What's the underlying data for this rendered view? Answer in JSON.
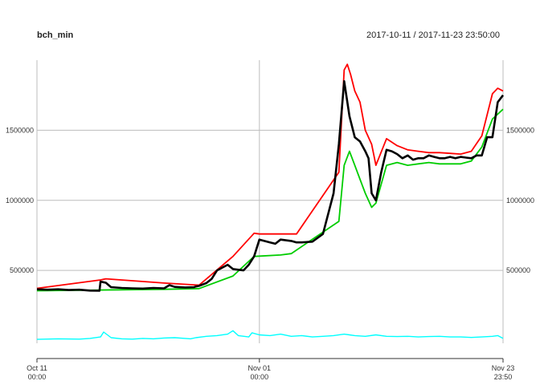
{
  "chart_data": {
    "type": "line",
    "title": "bch_min",
    "date_range": "2017-10-11 / 2017-11-23 23:50:00",
    "x_ticks": [
      {
        "date_line": "Oct 11",
        "time_line": "00:00"
      },
      {
        "date_line": "Nov 01",
        "time_line": "00:00"
      },
      {
        "date_line": "Nov 23",
        "time_line": "23:50"
      }
    ],
    "y_ticks": [
      "500000",
      "1000000",
      "1500000"
    ],
    "ylim": [
      -20000,
      2000000
    ],
    "grid": true,
    "series": [
      {
        "role": "close",
        "color": "#000000",
        "x": [
          0,
          1,
          2,
          3,
          4,
          5,
          5.9,
          6,
          6.5,
          7,
          8,
          9,
          10,
          11,
          12,
          12.5,
          13,
          14,
          14.8,
          15,
          15.3,
          16,
          16.5,
          17,
          18,
          18.5,
          19,
          19.5,
          20,
          20.5,
          21,
          22,
          22.5,
          23,
          24,
          24.5,
          25,
          26,
          27,
          28,
          28.5,
          29,
          29.5,
          30,
          30.5,
          31,
          31.3,
          31.6,
          32,
          32.5,
          33,
          33.5,
          34,
          34.5,
          35,
          35.5,
          36,
          36.5,
          37,
          37.5,
          38,
          38.5,
          39,
          39.5,
          40,
          40.5,
          41,
          41.5,
          42,
          42.5,
          43,
          43.5,
          44
        ],
        "y": [
          365000,
          362000,
          365000,
          360000,
          362000,
          356000,
          355000,
          420000,
          412000,
          380000,
          375000,
          372000,
          370000,
          375000,
          372000,
          395000,
          382000,
          378000,
          380000,
          385000,
          390000,
          410000,
          440000,
          500000,
          540000,
          510000,
          505000,
          500000,
          540000,
          600000,
          720000,
          700000,
          690000,
          720000,
          710000,
          700000,
          700000,
          705000,
          760000,
          1050000,
          1400000,
          1850000,
          1600000,
          1450000,
          1420000,
          1350000,
          1300000,
          1050000,
          1000000,
          1200000,
          1360000,
          1350000,
          1330000,
          1300000,
          1320000,
          1290000,
          1300000,
          1300000,
          1320000,
          1310000,
          1300000,
          1300000,
          1310000,
          1300000,
          1310000,
          1305000,
          1300000,
          1320000,
          1320000,
          1450000,
          1450000,
          1700000,
          1750000
        ]
      },
      {
        "role": "high",
        "color": "#ff0000",
        "x": [
          0,
          6,
          6.5,
          12,
          15.3,
          18.5,
          20.5,
          21,
          24.5,
          28.5,
          29,
          29.3,
          29.6,
          30,
          30.5,
          31,
          31.6,
          32,
          33,
          34,
          35,
          36,
          37,
          38,
          39,
          40,
          41,
          42,
          43,
          43.5,
          44
        ],
        "y": [
          372000,
          432000,
          440000,
          410000,
          395000,
          600000,
          765000,
          760000,
          760000,
          1200000,
          1930000,
          1970000,
          1900000,
          1780000,
          1700000,
          1500000,
          1400000,
          1250000,
          1440000,
          1390000,
          1360000,
          1350000,
          1340000,
          1340000,
          1335000,
          1330000,
          1350000,
          1460000,
          1760000,
          1800000,
          1780000
        ]
      },
      {
        "role": "low",
        "color": "#00cd00",
        "x": [
          0,
          6,
          12,
          15.3,
          18.5,
          20.5,
          23,
          24,
          28.5,
          29,
          29.5,
          30,
          30.5,
          31,
          31.6,
          32,
          33,
          34,
          35,
          36,
          37,
          38,
          39,
          40,
          41,
          42,
          43,
          44
        ],
        "y": [
          355000,
          360000,
          365000,
          370000,
          460000,
          600000,
          610000,
          620000,
          850000,
          1250000,
          1350000,
          1250000,
          1150000,
          1050000,
          950000,
          980000,
          1250000,
          1270000,
          1250000,
          1260000,
          1270000,
          1260000,
          1260000,
          1260000,
          1280000,
          1380000,
          1580000,
          1650000
        ]
      },
      {
        "role": "volume",
        "color": "#00ffff",
        "x": [
          0,
          2,
          4,
          5,
          6,
          6.3,
          7,
          8,
          9,
          10,
          11,
          12,
          13,
          14,
          14.5,
          15,
          16,
          17,
          18,
          18.5,
          19,
          20,
          20.3,
          21,
          22,
          23,
          24,
          25,
          26,
          27,
          28,
          29,
          29.5,
          30,
          31,
          32,
          33,
          34,
          35,
          36,
          37,
          38,
          39,
          40,
          41,
          42,
          43,
          43.5,
          44
        ],
        "y": [
          8000,
          12000,
          10000,
          15000,
          25000,
          60000,
          20000,
          12000,
          10000,
          15000,
          12000,
          18000,
          20000,
          15000,
          12000,
          20000,
          30000,
          35000,
          45000,
          70000,
          35000,
          25000,
          55000,
          40000,
          35000,
          45000,
          30000,
          35000,
          25000,
          30000,
          35000,
          45000,
          40000,
          35000,
          30000,
          40000,
          30000,
          28000,
          30000,
          25000,
          28000,
          30000,
          25000,
          25000,
          22000,
          25000,
          30000,
          35000,
          15000
        ]
      }
    ]
  }
}
